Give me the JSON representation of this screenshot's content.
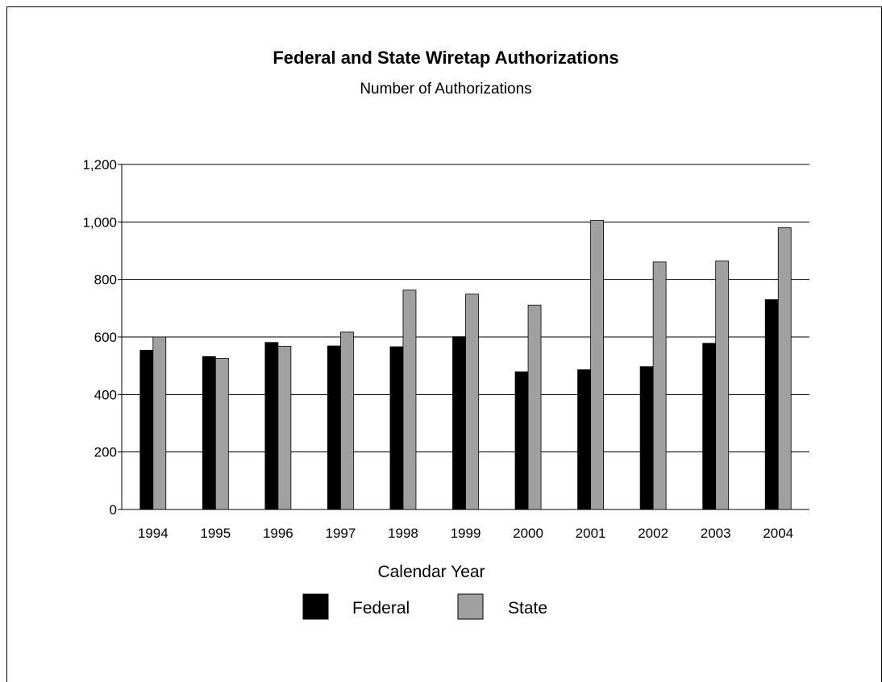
{
  "chart_data": {
    "type": "bar",
    "title": "Federal and State Wiretap Authorizations",
    "subtitle": "Number of Authorizations",
    "xlabel": "Calendar Year",
    "ylabel": "",
    "categories": [
      "1994",
      "1995",
      "1996",
      "1997",
      "1998",
      "1999",
      "2000",
      "2001",
      "2002",
      "2003",
      "2004"
    ],
    "series": [
      {
        "name": "Federal",
        "color": "#000000",
        "values": [
          554,
          532,
          581,
          569,
          566,
          601,
          479,
          486,
          497,
          578,
          730
        ]
      },
      {
        "name": "State",
        "color": "#a0a0a0",
        "values": [
          600,
          526,
          568,
          617,
          763,
          749,
          711,
          1005,
          861,
          864,
          980
        ]
      }
    ],
    "ylim": [
      0,
      1200
    ],
    "yticks": [
      0,
      200,
      400,
      600,
      800,
      1000,
      1200
    ],
    "ytick_labels": [
      "0",
      "200",
      "400",
      "600",
      "800",
      "1,000",
      "1,200"
    ],
    "grid": true,
    "legend_position": "bottom-center"
  }
}
